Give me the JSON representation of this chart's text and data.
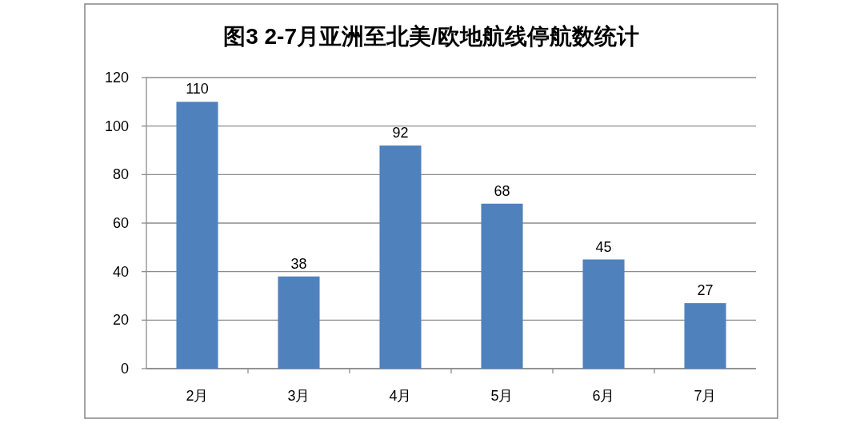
{
  "chart_data": {
    "type": "bar",
    "title": "图3  2-7月亚洲至北美/欧地航线停航数统计",
    "categories": [
      "2月",
      "3月",
      "4月",
      "5月",
      "6月",
      "7月"
    ],
    "values": [
      110,
      38,
      92,
      68,
      45,
      27
    ],
    "color": "#4f81bd",
    "ylim": [
      0,
      120
    ],
    "yticks": [
      0,
      20,
      40,
      60,
      80,
      100,
      120
    ],
    "grid": "y",
    "data_labels": true
  }
}
